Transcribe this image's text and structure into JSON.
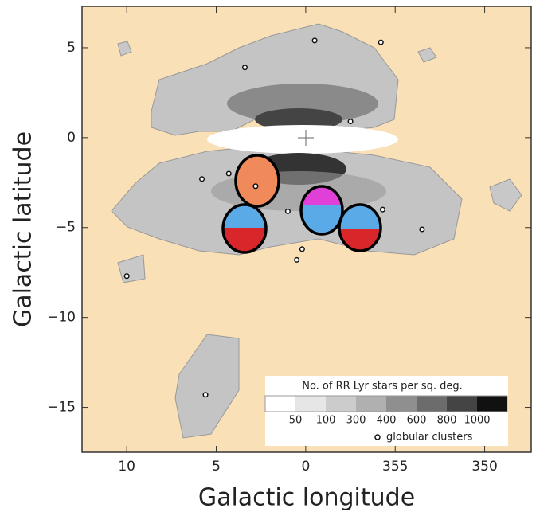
{
  "chart_data": {
    "type": "scatter",
    "xlabel": "Galactic longitude",
    "ylabel": "Galactic latitude",
    "xlim": [
      12.5,
      -12.6
    ],
    "ylim": [
      -17.5,
      7.3
    ],
    "xticks": [
      10,
      5,
      0,
      {
        "value": -5,
        "label": "355"
      },
      {
        "value": -10,
        "label": "350"
      }
    ],
    "yticks": [
      5,
      0,
      {
        "value": -5,
        "label": "−5"
      },
      {
        "value": -10,
        "label": "−10"
      },
      {
        "value": -15,
        "label": "−15"
      }
    ],
    "series": [
      {
        "name": "globular clusters",
        "color": "#111",
        "x": [
          -0.5,
          -4.2,
          3.4,
          -2.5,
          5.8,
          4.3,
          2.8,
          1.0,
          -4.3,
          -6.5,
          0.2,
          0.5,
          10.0,
          5.6
        ],
        "values": [
          5.4,
          5.3,
          3.9,
          0.9,
          -2.3,
          -2.0,
          -2.7,
          -4.1,
          -4.0,
          -5.1,
          -6.2,
          -6.8,
          -7.7,
          -14.3
        ]
      }
    ],
    "colorbar": {
      "title": "No. of RR Lyr stars per sq. deg.",
      "ticks": [
        50,
        100,
        300,
        400,
        600,
        800,
        1000
      ],
      "colors": [
        "#ffffff",
        "#e6e6e6",
        "#cccccc",
        "#b0b0b0",
        "#8f8f8f",
        "#6c6c6c",
        "#444444",
        "#111111"
      ]
    }
  }
}
